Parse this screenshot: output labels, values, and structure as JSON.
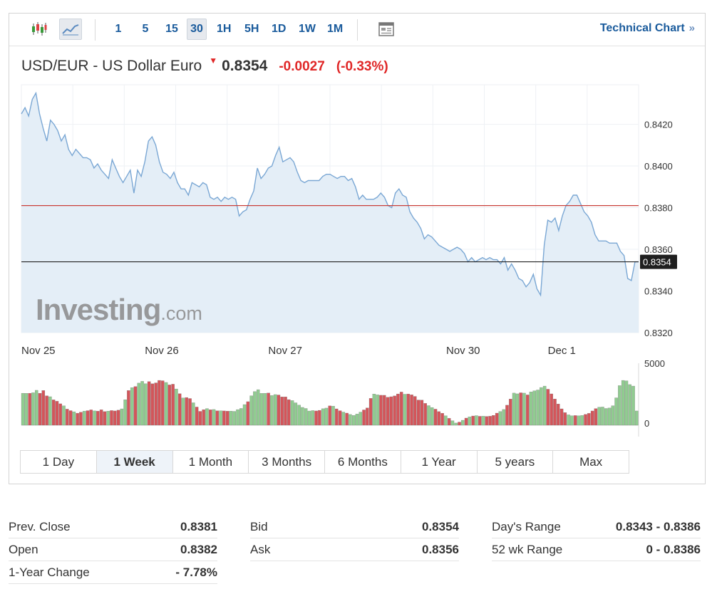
{
  "toolbar": {
    "intervals": [
      "1",
      "5",
      "15",
      "30",
      "1H",
      "5H",
      "1D",
      "1W",
      "1M"
    ],
    "active_interval": "30",
    "tech_chart_label": "Technical Chart",
    "tech_chart_arrows": "»"
  },
  "quote": {
    "name": "USD/EUR - US Dollar Euro",
    "price": "0.8354",
    "change": "-0.0027",
    "change_pct": "(-0.33%)"
  },
  "colors": {
    "line": "#7aa7d4",
    "area": "#e4eef7",
    "prev_close_line": "#c9403a",
    "last_price_line": "#222222",
    "vol_up": "#90cc90",
    "vol_down": "#d4555a",
    "link": "#1a5b9c",
    "negative": "#e02727"
  },
  "chart_data": {
    "type": "area",
    "title": "USD/EUR - US Dollar Euro",
    "x_tick_labels": [
      "Nov 25",
      "Nov 26",
      "Nov 27",
      "Nov 30",
      "Dec 1"
    ],
    "x_tick_positions": [
      0,
      34,
      68,
      117,
      145
    ],
    "ylim": [
      0.832,
      0.8439
    ],
    "y_ticks": [
      "0.8420",
      "0.8400",
      "0.8380",
      "0.8360",
      "0.8340",
      "0.8320"
    ],
    "prev_close": 0.8381,
    "last_price_label": "0.8354",
    "series": [
      {
        "values": [
          0.8425,
          0.8428,
          0.8424,
          0.8432,
          0.8435,
          0.8425,
          0.8418,
          0.8412,
          0.8422,
          0.842,
          0.8417,
          0.8412,
          0.8415,
          0.8408,
          0.8405,
          0.8408,
          0.8406,
          0.8404,
          0.8404,
          0.8403,
          0.8399,
          0.8401,
          0.8398,
          0.8396,
          0.8394,
          0.8403,
          0.8399,
          0.8395,
          0.8392,
          0.8395,
          0.8398,
          0.8387,
          0.8398,
          0.8395,
          0.8402,
          0.8412,
          0.8414,
          0.841,
          0.8402,
          0.8397,
          0.8396,
          0.8394,
          0.8397,
          0.8392,
          0.8389,
          0.8389,
          0.8386,
          0.8392,
          0.8391,
          0.839,
          0.8392,
          0.8391,
          0.8385,
          0.8384,
          0.8385,
          0.8383,
          0.8385,
          0.8384,
          0.8385,
          0.8384,
          0.8376,
          0.8378,
          0.8379,
          0.8384,
          0.8388,
          0.8399,
          0.8394,
          0.8396,
          0.8399,
          0.84,
          0.8405,
          0.8409,
          0.8402,
          0.8403,
          0.8404,
          0.8402,
          0.8397,
          0.8393,
          0.8392,
          0.8393,
          0.8393,
          0.8393,
          0.8393,
          0.8395,
          0.8396,
          0.8396,
          0.8395,
          0.8394,
          0.8395,
          0.8395,
          0.8393,
          0.8394,
          0.839,
          0.8384,
          0.8386,
          0.8384,
          0.8384,
          0.8384,
          0.8385,
          0.8387,
          0.8385,
          0.8381,
          0.838,
          0.8387,
          0.8389,
          0.8386,
          0.8385,
          0.8378,
          0.8375,
          0.8373,
          0.837,
          0.8365,
          0.8367,
          0.8366,
          0.8364,
          0.8362,
          0.8361,
          0.836,
          0.8359,
          0.836,
          0.8361,
          0.836,
          0.8358,
          0.8354,
          0.8356,
          0.8354,
          0.8355,
          0.8356,
          0.8355,
          0.8356,
          0.8355,
          0.8355,
          0.8353,
          0.8356,
          0.835,
          0.8353,
          0.835,
          0.8346,
          0.8345,
          0.8342,
          0.8344,
          0.8348,
          0.8341,
          0.8338,
          0.8362,
          0.8374,
          0.8373,
          0.8375,
          0.8369,
          0.8376,
          0.8381,
          0.8383,
          0.8386,
          0.8386,
          0.8382,
          0.8378,
          0.8376,
          0.8373,
          0.8367,
          0.8364,
          0.8364,
          0.8364,
          0.8363,
          0.8363,
          0.8363,
          0.8359,
          0.8357,
          0.8346,
          0.8345,
          0.8354,
          0.8354
        ]
      }
    ],
    "volume": {
      "ylim": [
        0,
        5000
      ],
      "y_ticks": [
        "5000",
        "0"
      ],
      "values": [
        2580,
        2575,
        2580,
        2621,
        2818,
        2580,
        2798,
        2373,
        2300,
        2047,
        1934,
        1730,
        1561,
        1298,
        1177,
        1086,
        970,
        1052,
        1135,
        1175,
        1240,
        1155,
        1133,
        1245,
        1100,
        1140,
        1184,
        1153,
        1214,
        1320,
        2059,
        2800,
        3035,
        3125,
        3398,
        3541,
        3348,
        3523,
        3345,
        3418,
        3617,
        3590,
        3450,
        3253,
        3310,
        2926,
        2545,
        2203,
        2236,
        2155,
        1812,
        1468,
        1120,
        1257,
        1345,
        1244,
        1268,
        1160,
        1167,
        1154,
        1137,
        1138,
        1119,
        1260,
        1353,
        1665,
        1900,
        2375,
        2718,
        2869,
        2567,
        2578,
        2600,
        2393,
        2473,
        2440,
        2289,
        2289,
        2065,
        1988,
        1808,
        1620,
        1438,
        1352,
        1147,
        1182,
        1153,
        1202,
        1330,
        1382,
        1559,
        1537,
        1320,
        1172,
        1060,
        977,
        866,
        787,
        901,
        1059,
        1236,
        1396,
        2168,
        2518,
        2450,
        2418,
        2416,
        2258,
        2300,
        2363,
        2524,
        2679,
        2500,
        2522,
        2454,
        2326,
        2035,
        2025,
        1763,
        1581,
        1430,
        1296,
        1099,
        968,
        756,
        555,
        361,
        177,
        255,
        401,
        574,
        678,
        745,
        773,
        720,
        727,
        711,
        727,
        796,
        975,
        1109,
        1269,
        1616,
        2111,
        2593,
        2533,
        2617,
        2590,
        2447,
        2691,
        2779,
        2844,
        3043,
        3157,
        2904,
        2530,
        2119,
        1716,
        1322,
        1015,
        837,
        760,
        781,
        758,
        785,
        873,
        957,
        1152,
        1343,
        1458,
        1469,
        1352,
        1389,
        1571,
        2211,
        3194,
        3616,
        3583,
        3280,
        3158,
        1152
      ]
    }
  },
  "range_tabs": [
    "1 Day",
    "1 Week",
    "1 Month",
    "3 Months",
    "6 Months",
    "1 Year",
    "5 years",
    "Max"
  ],
  "active_range": "1 Week",
  "stats": {
    "col1": [
      {
        "label": "Prev. Close",
        "value": "0.8381"
      },
      {
        "label": "Open",
        "value": "0.8382"
      },
      {
        "label": "1-Year Change",
        "value": "- 7.78%"
      }
    ],
    "col2": [
      {
        "label": "Bid",
        "value": "0.8354"
      },
      {
        "label": "Ask",
        "value": "0.8356"
      }
    ],
    "col3": [
      {
        "label": "Day's Range",
        "value": "0.8343 - 0.8386"
      },
      {
        "label": "52 wk Range",
        "value": "0 - 0.8386"
      }
    ]
  },
  "logo": {
    "brand": "Investing",
    "suffix": ".com"
  }
}
